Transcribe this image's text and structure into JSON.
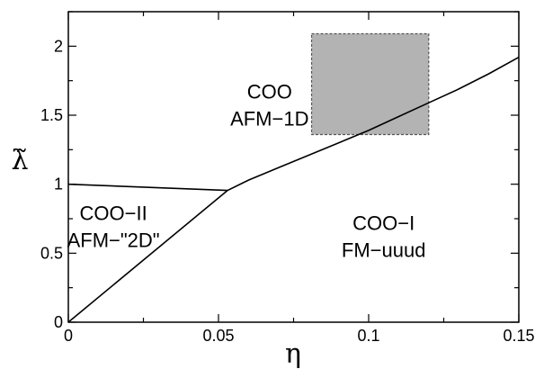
{
  "chart_data": {
    "type": "line",
    "xlabel": "η",
    "ylabel": "λ̃",
    "xlim": [
      0,
      0.15
    ],
    "ylim": [
      0,
      2.25
    ],
    "grid": false,
    "x_ticks": [
      {
        "value": 0,
        "label": "0"
      },
      {
        "value": 0.05,
        "label": "0.05"
      },
      {
        "value": 0.1,
        "label": "0.1"
      },
      {
        "value": 0.15,
        "label": "0.15"
      }
    ],
    "y_ticks": [
      {
        "value": 0,
        "label": "0"
      },
      {
        "value": 0.5,
        "label": "0.5"
      },
      {
        "value": 1,
        "label": "1"
      },
      {
        "value": 1.5,
        "label": "1.5"
      },
      {
        "value": 2,
        "label": "2"
      }
    ],
    "series": [
      {
        "id": "boundary-upper-left",
        "x": [
          0,
          0.053
        ],
        "y": [
          1.0,
          0.955
        ]
      },
      {
        "id": "boundary-lower-left",
        "x": [
          0,
          0.053
        ],
        "y": [
          0,
          0.955
        ]
      },
      {
        "id": "boundary-right",
        "x": [
          0.053,
          0.06,
          0.07,
          0.08,
          0.09,
          0.1,
          0.11,
          0.12,
          0.13,
          0.14,
          0.15
        ],
        "y": [
          0.955,
          1.03,
          1.12,
          1.21,
          1.3,
          1.39,
          1.49,
          1.59,
          1.69,
          1.8,
          1.92
        ]
      }
    ],
    "shaded_region": {
      "x_range": [
        0.081,
        0.12
      ],
      "y_range": [
        1.36,
        2.09
      ],
      "color": "#b3b3b3"
    },
    "annotations": [
      {
        "id": "coo",
        "lines": [
          "COO",
          "AFM−1D"
        ],
        "x": 0.067,
        "y": 1.62
      },
      {
        "id": "coo-ii",
        "lines": [
          "COO−II",
          "AFM−\"2D\""
        ],
        "x": 0.015,
        "y": 0.74
      },
      {
        "id": "coo-i",
        "lines": [
          "COO−I",
          "FM−uuud"
        ],
        "x": 0.105,
        "y": 0.67
      }
    ]
  }
}
